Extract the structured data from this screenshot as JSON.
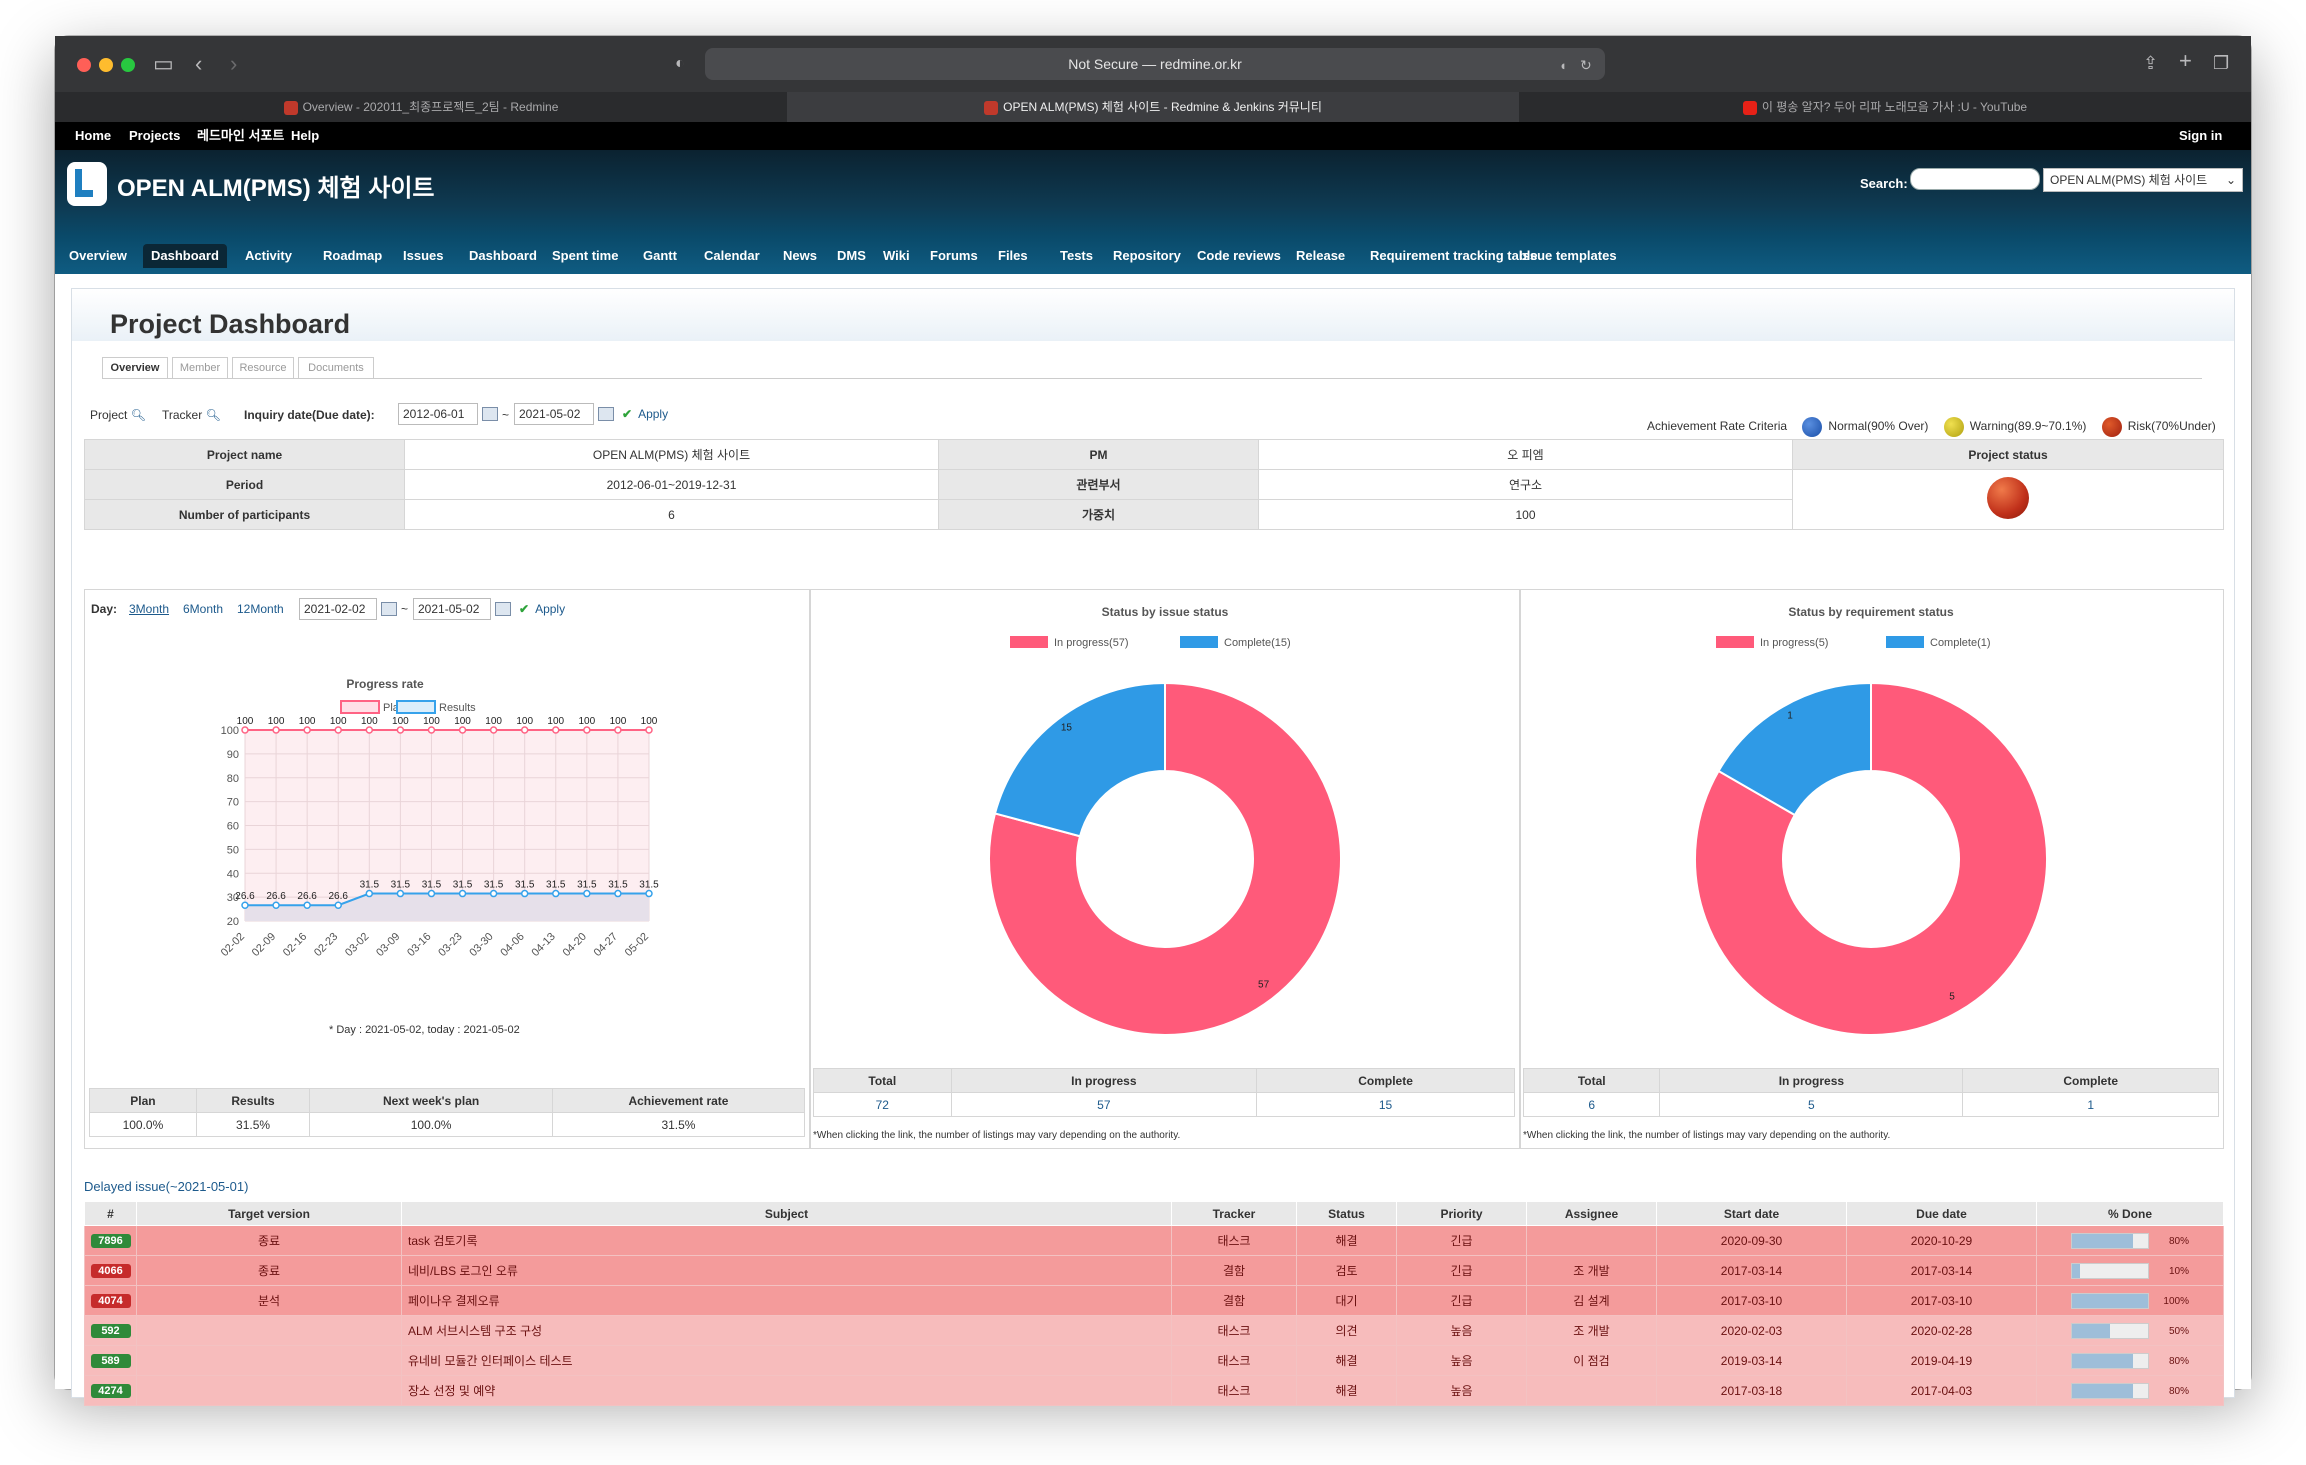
{
  "browser": {
    "url": "Not Secure — redmine.or.kr",
    "tabs": [
      {
        "label": "Overview - 202011_최종프로젝트_2팀 - Redmine",
        "active": false
      },
      {
        "label": "OPEN ALM(PMS) 체험 사이트 - Redmine & Jenkins 커뮤니티",
        "active": true
      },
      {
        "label": "이 평송 알자? 두아 리파 노래모음 가사 :U - YouTube",
        "active": false
      }
    ]
  },
  "top_menu": {
    "home": "Home",
    "projects": "Projects",
    "support": "레드마인 서포트",
    "help": "Help",
    "sign_in": "Sign in"
  },
  "header": {
    "site_title": "OPEN ALM(PMS) 체험 사이트",
    "search_label": "Search:",
    "project_select": "OPEN ALM(PMS) 체험 사이트"
  },
  "main_menu": [
    "Overview",
    "Dashboard",
    "Activity",
    "Roadmap",
    "Issues",
    "Dashboard",
    "Spent time",
    "Gantt",
    "Calendar",
    "News",
    "DMS",
    "Wiki",
    "Forums",
    "Files",
    "Tests",
    "Repository",
    "Code reviews",
    "Release",
    "Requirement tracking table",
    "Issue templates"
  ],
  "page": {
    "title": "Project Dashboard",
    "tabs": [
      "Overview",
      "Member",
      "Resource",
      "Documents"
    ],
    "filters": {
      "project_label": "Project",
      "tracker_label": "Tracker",
      "inquiry_label": "Inquiry date(Due date):",
      "from": "2012-06-01",
      "to": "2021-05-02",
      "tilde": "~",
      "apply": "Apply"
    },
    "criteria": {
      "label": "Achievement Rate Criteria",
      "normal": "Normal(90% Over)",
      "warning": "Warning(89.9~70.1%)",
      "risk": "Risk(70%Under)"
    },
    "info": {
      "project_name_label": "Project name",
      "project_name": "OPEN ALM(PMS) 체험 사이트",
      "pm_label": "PM",
      "pm": "오 피엠",
      "status_label": "Project status",
      "period_label": "Period",
      "period": "2012-06-01~2019-12-31",
      "dept_label": "관련부서",
      "dept": "연구소",
      "participants_label": "Number of participants",
      "participants": "6",
      "weight_label": "가중치",
      "weight": "100"
    },
    "progress_panel": {
      "day_label": "Day:",
      "m3": "3Month",
      "m6": "6Month",
      "m12": "12Month",
      "from": "2021-02-02",
      "to": "2021-05-02",
      "tilde": "~",
      "apply": "Apply",
      "footnote": "* Day : 2021-05-02, today : 2021-05-02",
      "summary_headers": [
        "Plan",
        "Results",
        "Next week's plan",
        "Achievement rate"
      ],
      "summary_values": [
        "100.0%",
        "31.5%",
        "100.0%",
        "31.5%"
      ]
    },
    "issue_panel": {
      "headers": [
        "Total",
        "In progress",
        "Complete"
      ],
      "values": [
        "72",
        "57",
        "15"
      ],
      "note": "*When clicking the link, the number of listings may vary depending on the authority."
    },
    "req_panel": {
      "headers": [
        "Total",
        "In progress",
        "Complete"
      ],
      "values": [
        "6",
        "5",
        "1"
      ],
      "note": "*When clicking the link, the number of listings may vary depending on the authority."
    },
    "delayed": {
      "title": "Delayed issue(~2021-05-01)",
      "headers": [
        "#",
        "Target version",
        "Subject",
        "Tracker",
        "Status",
        "Priority",
        "Assignee",
        "Start date",
        "Due date",
        "% Done"
      ],
      "rows": [
        {
          "id": "7896",
          "version": "종료",
          "subject": "task 검토기록",
          "tracker": "태스크",
          "status": "해결",
          "priority": "긴급",
          "assignee": "",
          "start": "2020-09-30",
          "due": "2020-10-29",
          "done": "80%",
          "done_value": 0.8,
          "style": "r1",
          "badge": "green"
        },
        {
          "id": "4066",
          "version": "종료",
          "subject": "네비/LBS 로그인 오류",
          "tracker": "결함",
          "status": "검토",
          "priority": "긴급",
          "assignee": "조 개발",
          "start": "2017-03-14",
          "due": "2017-03-14",
          "done": "10%",
          "done_value": 0.1,
          "style": "r1",
          "badge": "red"
        },
        {
          "id": "4074",
          "version": "분석",
          "subject": "페이나우 결제오류",
          "tracker": "결함",
          "status": "대기",
          "priority": "긴급",
          "assignee": "김 설계",
          "start": "2017-03-10",
          "due": "2017-03-10",
          "done": "100%",
          "done_value": 1.0,
          "style": "r1",
          "badge": "red"
        },
        {
          "id": "592",
          "version": "",
          "subject": "ALM 서브시스템 구조 구성",
          "tracker": "태스크",
          "status": "의견",
          "priority": "높음",
          "assignee": "조 개발",
          "start": "2020-02-03",
          "due": "2020-02-28",
          "done": "50%",
          "done_value": 0.5,
          "style": "r2",
          "badge": "green"
        },
        {
          "id": "589",
          "version": "",
          "subject": "유네비 모듈간 인터페이스 테스트",
          "tracker": "태스크",
          "status": "해결",
          "priority": "높음",
          "assignee": "이 점검",
          "start": "2019-03-14",
          "due": "2019-04-19",
          "done": "80%",
          "done_value": 0.8,
          "style": "r2",
          "badge": "green"
        },
        {
          "id": "4274",
          "version": "",
          "subject": "장소 선정 및 예약",
          "tracker": "태스크",
          "status": "해결",
          "priority": "높음",
          "assignee": "",
          "start": "2017-03-18",
          "due": "2017-04-03",
          "done": "80%",
          "done_value": 0.8,
          "style": "r2",
          "badge": "green"
        }
      ]
    }
  },
  "chart_data": [
    {
      "type": "line",
      "title": "Progress rate",
      "categories": [
        "02-02",
        "02-09",
        "02-16",
        "02-23",
        "03-02",
        "03-09",
        "03-16",
        "03-23",
        "03-30",
        "04-06",
        "04-13",
        "04-20",
        "04-27",
        "05-02"
      ],
      "series": [
        {
          "name": "Plan",
          "values": [
            100,
            100,
            100,
            100,
            100,
            100,
            100,
            100,
            100,
            100,
            100,
            100,
            100,
            100
          ],
          "color": "#ff6384"
        },
        {
          "name": "Results",
          "values": [
            26.6,
            26.6,
            26.6,
            26.6,
            31.5,
            31.5,
            31.5,
            31.5,
            31.5,
            31.5,
            31.5,
            31.5,
            31.5,
            31.5
          ],
          "color": "#36a2eb"
        }
      ],
      "ylim": [
        20,
        100
      ],
      "yticks": [
        20,
        30,
        40,
        50,
        60,
        70,
        80,
        90,
        100
      ],
      "grid": true,
      "legend": "top"
    },
    {
      "type": "pie",
      "title": "Status by issue status",
      "labels": [
        "In progress(57)",
        "Complete(15)"
      ],
      "values": [
        57,
        15
      ],
      "colors": [
        "#ff5a7a",
        "#2f9ae6"
      ],
      "legend": "top"
    },
    {
      "type": "pie",
      "title": "Status by requirement status",
      "labels": [
        "In progress(5)",
        "Complete(1)"
      ],
      "values": [
        5,
        1
      ],
      "colors": [
        "#ff5a7a",
        "#2f9ae6"
      ],
      "legend": "top"
    }
  ]
}
